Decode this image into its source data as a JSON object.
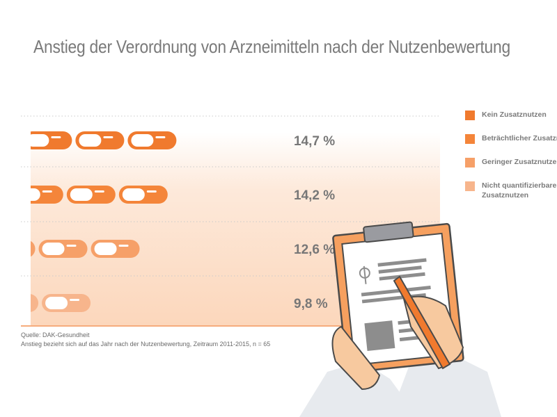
{
  "chart_data": {
    "type": "bar",
    "title": "Anstieg der Verordnung von Arzneimitteln nach der Nutzenbewertung",
    "categories": [
      "Kein Zusatznutzen",
      "Beträchtlicher Zusatznutzen",
      "Geringer Zusatznutzen",
      "Nicht quantifizierbarer Zusatznutzen"
    ],
    "values": [
      14.7,
      14.2,
      12.6,
      9.8
    ],
    "value_labels": [
      "14,7 %",
      "14,2 %",
      "12,6 %",
      "9,8 %"
    ],
    "colors": [
      "#f07a2e",
      "#f4853a",
      "#f6a068",
      "#f7b58c"
    ],
    "legend": [
      {
        "label": "Kein Zusatznutzen",
        "color": "#f07a2e"
      },
      {
        "label": "Beträchtlicher Zusatznutzen",
        "color": "#f4853a"
      },
      {
        "label": "Geringer Zusatznutzen",
        "color": "#f6a068"
      },
      {
        "label": "Nicht quantifizierbarer",
        "label2": "Zusatznutzen",
        "color": "#f7b58c"
      }
    ],
    "legend_position": "right",
    "source_line1": "Quelle: DAK-Gesundheit",
    "source_line2": "Anstieg bezieht sich auf das Jahr nach der Nutzenbewertung, Zeitraum 2011-2015, n = 65"
  }
}
